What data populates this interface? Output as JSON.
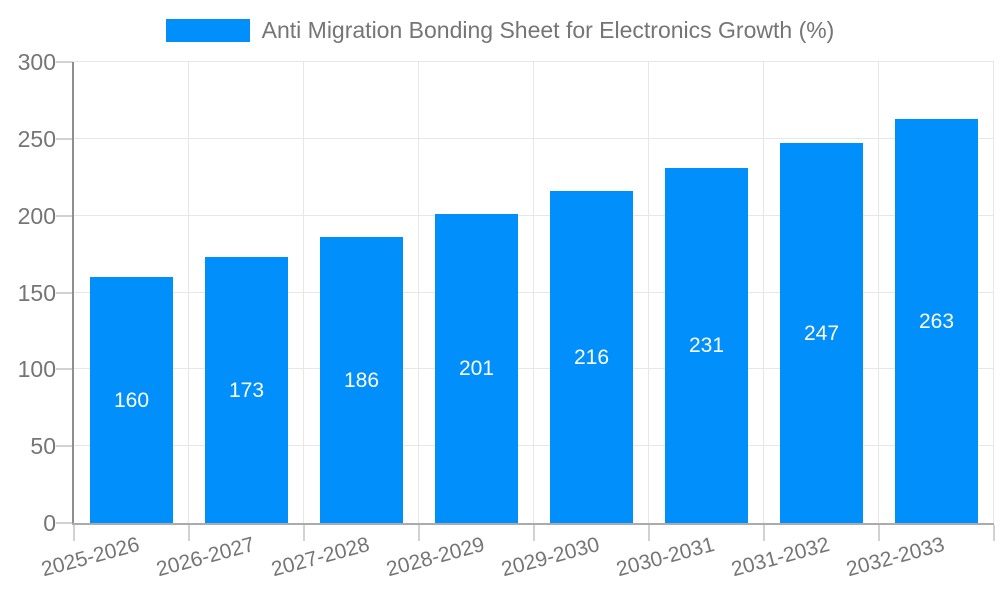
{
  "chart_data": {
    "type": "bar",
    "title": "Anti Migration Bonding Sheet for Electronics Growth (%)",
    "series": [
      {
        "name": "Anti Migration Bonding Sheet for Electronics Growth (%)",
        "values": [
          160,
          173,
          186,
          201,
          216,
          231,
          247,
          263
        ]
      }
    ],
    "categories": [
      "2025-2026",
      "2026-2027",
      "2027-2028",
      "2028-2029",
      "2029-2030",
      "2030-2031",
      "2031-2032",
      "2032-2033"
    ],
    "xlabel": "",
    "ylabel": "",
    "ylim": [
      0,
      300
    ],
    "yticks": [
      0,
      50,
      100,
      150,
      200,
      250,
      300
    ],
    "grid": true,
    "legend_position": "top",
    "x_label_rotation_deg": -15,
    "colors": {
      "bar": "#008FFB",
      "value_label": "#ffffff",
      "axis_text": "#757575",
      "grid_line": "#e7e7e7",
      "y_axis_line": "#8f8f8f",
      "x_axis_line": "#ababab",
      "tick_mark": "#d2d2d2",
      "background": "#ffffff"
    }
  }
}
